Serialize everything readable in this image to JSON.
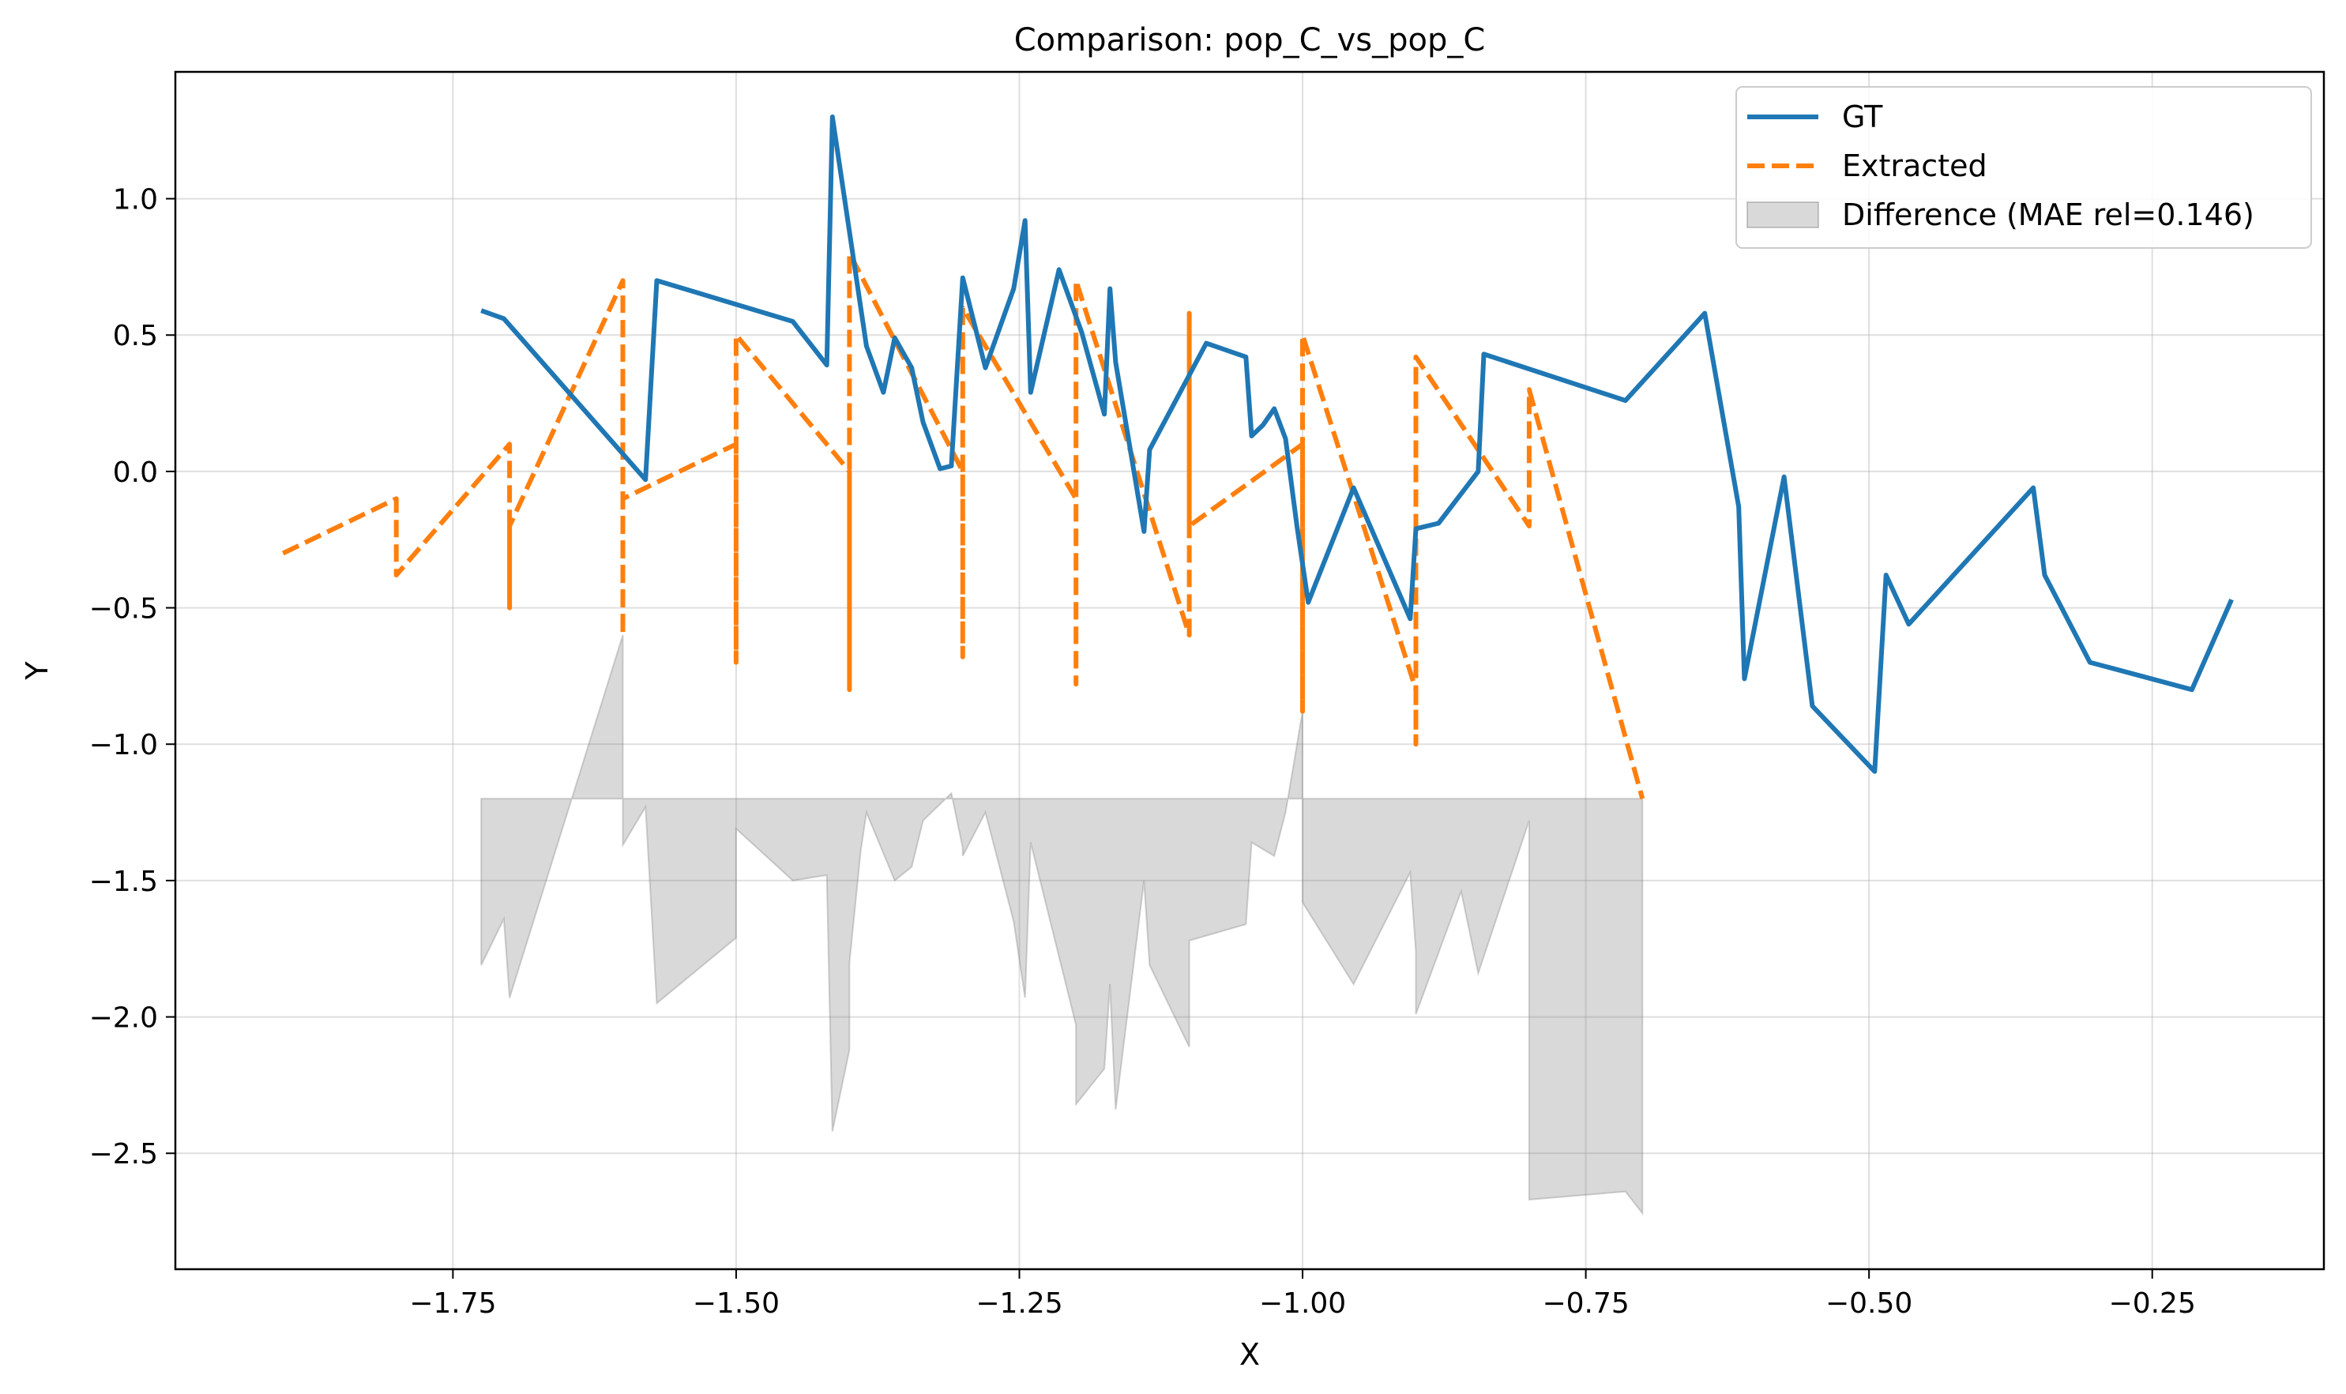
{
  "chart_data": {
    "type": "line",
    "title": "Comparison: pop_C_vs_pop_C",
    "xlabel": "X",
    "ylabel": "Y",
    "xlim": [
      -1.995,
      -0.0985
    ],
    "ylim": [
      -2.925,
      1.465
    ],
    "grid": true,
    "legend_position": "top-right",
    "x_ticks": [
      -1.75,
      -1.5,
      -1.25,
      -1.0,
      -0.75,
      -0.5,
      -0.25
    ],
    "x_tick_labels": [
      "−1.75",
      "−1.50",
      "−1.25",
      "−1.00",
      "−0.75",
      "−0.50",
      "−0.25"
    ],
    "y_ticks": [
      1.0,
      0.5,
      0.0,
      -0.5,
      -1.0,
      -1.5,
      -2.0,
      -2.5
    ],
    "y_tick_labels": [
      "1.0",
      "0.5",
      "0.0",
      "−0.5",
      "−1.0",
      "−1.5",
      "−2.0",
      "−2.5"
    ],
    "series": [
      {
        "name": "GT",
        "color": "#1f77b4",
        "style": "solid",
        "x": [
          -1.725,
          -1.705,
          -1.58,
          -1.57,
          -1.45,
          -1.42,
          -1.415,
          -1.39,
          -1.385,
          -1.37,
          -1.36,
          -1.345,
          -1.335,
          -1.32,
          -1.31,
          -1.3,
          -1.28,
          -1.255,
          -1.245,
          -1.24,
          -1.215,
          -1.195,
          -1.175,
          -1.17,
          -1.165,
          -1.14,
          -1.135,
          -1.085,
          -1.05,
          -1.045,
          -1.035,
          -1.025,
          -1.015,
          -1.005,
          -0.995,
          -0.955,
          -0.905,
          -0.9,
          -0.88,
          -0.845,
          -0.84,
          -0.715,
          -0.645,
          -0.615,
          -0.61,
          -0.575,
          -0.55,
          -0.495,
          -0.485,
          -0.465,
          -0.355,
          -0.345,
          -0.305,
          -0.215,
          -0.18
        ],
        "y": [
          0.59,
          0.56,
          -0.03,
          0.7,
          0.55,
          0.39,
          1.3,
          0.6,
          0.46,
          0.29,
          0.49,
          0.38,
          0.18,
          0.01,
          0.02,
          0.71,
          0.38,
          0.67,
          0.92,
          0.29,
          0.74,
          0.51,
          0.21,
          0.67,
          0.4,
          -0.22,
          0.08,
          0.47,
          0.42,
          0.13,
          0.17,
          0.23,
          0.12,
          -0.2,
          -0.48,
          -0.06,
          -0.54,
          -0.21,
          -0.19,
          0.0,
          0.43,
          0.26,
          0.58,
          -0.13,
          -0.76,
          -0.02,
          -0.86,
          -1.1,
          -0.38,
          -0.56,
          -0.06,
          -0.38,
          -0.7,
          -0.8,
          -0.47
        ]
      },
      {
        "name": "Extracted",
        "color": "#ff7f0e",
        "style": "dashed",
        "x": [
          -1.9,
          -1.8,
          -1.8,
          -1.7,
          -1.7,
          -1.7,
          -1.6,
          -1.6,
          -1.6,
          -1.5,
          -1.5,
          -1.5,
          -1.4,
          -1.4,
          -1.4,
          -1.3,
          -1.3,
          -1.3,
          -1.2,
          -1.2,
          -1.2,
          -1.1,
          -1.1,
          -1.1,
          -1.0,
          -1.0,
          -1.0,
          -0.9,
          -0.9,
          -0.9,
          -0.8,
          -0.8,
          -0.7
        ],
        "y": [
          -0.3,
          -0.1,
          -0.38,
          0.1,
          -0.5,
          -0.2,
          0.7,
          -0.6,
          -0.1,
          0.1,
          -0.7,
          0.5,
          0.0,
          -0.8,
          0.8,
          0.0,
          -0.68,
          0.6,
          -0.1,
          -0.78,
          0.7,
          -0.6,
          0.58,
          -0.2,
          0.1,
          -0.88,
          0.5,
          -0.8,
          -1.0,
          0.42,
          -0.2,
          0.3,
          -1.2
        ]
      }
    ],
    "difference": {
      "name": "Difference (MAE rel=0.146)",
      "color": "#808080",
      "baseline": -1.2,
      "x": [
        -1.725,
        -1.705,
        -1.7,
        -1.6,
        -1.6,
        -1.58,
        -1.57,
        -1.5,
        -1.5,
        -1.45,
        -1.42,
        -1.415,
        -1.4,
        -1.4,
        -1.39,
        -1.385,
        -1.36,
        -1.345,
        -1.335,
        -1.31,
        -1.3,
        -1.3,
        -1.28,
        -1.255,
        -1.245,
        -1.24,
        -1.2,
        -1.2,
        -1.175,
        -1.17,
        -1.165,
        -1.14,
        -1.135,
        -1.1,
        -1.1,
        -1.05,
        -1.045,
        -1.025,
        -1.015,
        -1.0,
        -1.0,
        -0.955,
        -0.905,
        -0.9,
        -0.9,
        -0.86,
        -0.845,
        -0.8,
        -0.8,
        -0.715,
        -0.7
      ],
      "y": [
        -1.81,
        -1.64,
        -1.93,
        -0.6,
        -1.37,
        -1.23,
        -1.95,
        -1.71,
        -1.31,
        -1.5,
        -1.48,
        -2.42,
        -2.12,
        -1.8,
        -1.39,
        -1.25,
        -1.5,
        -1.45,
        -1.28,
        -1.18,
        -1.38,
        -1.41,
        -1.25,
        -1.65,
        -1.93,
        -1.36,
        -2.03,
        -2.32,
        -2.19,
        -1.88,
        -2.34,
        -1.5,
        -1.81,
        -2.11,
        -1.72,
        -1.66,
        -1.36,
        -1.41,
        -1.25,
        -0.88,
        -1.58,
        -1.88,
        -1.47,
        -1.76,
        -1.99,
        -1.54,
        -1.84,
        -1.28,
        -2.67,
        -2.64,
        -2.72
      ]
    }
  }
}
